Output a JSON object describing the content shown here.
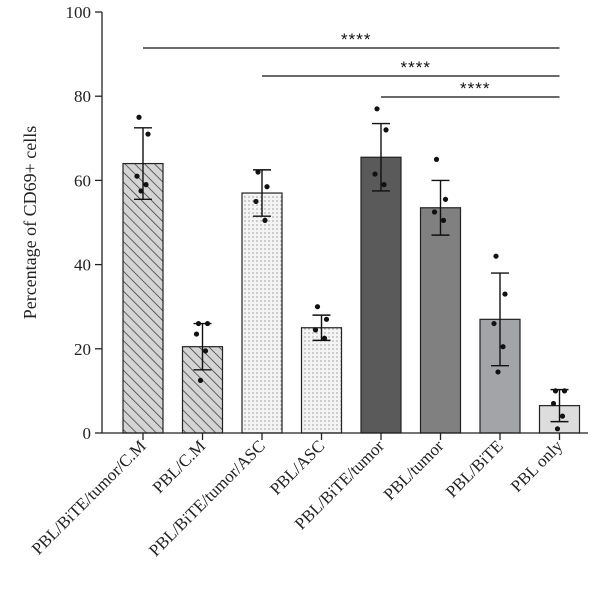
{
  "chart_data": {
    "type": "bar",
    "title": "",
    "xlabel": "",
    "ylabel": "Percentage of CD69+ cells",
    "ylim": [
      0,
      100
    ],
    "yticks": [
      0,
      20,
      40,
      60,
      80,
      100
    ],
    "grid": false,
    "categories": [
      "PBL/BiTE/tumor/C.M",
      "PBL/C.M",
      "PBL/BiTE/tumor/ASC",
      "PBL/ASC",
      "PBL/BiTE/tumor",
      "PBL/tumor",
      "PBL/BiTE",
      "PBL only"
    ],
    "values": [
      64,
      20.5,
      57,
      25,
      65.5,
      53.5,
      27,
      6.5
    ],
    "error": [
      8.5,
      5.5,
      5.5,
      3,
      8,
      6.5,
      11,
      3.8
    ],
    "points": [
      [
        75,
        71,
        61,
        59,
        57.5
      ],
      [
        26,
        26,
        23.5,
        19.5,
        12.5
      ],
      [
        62,
        58.5,
        55,
        50.5
      ],
      [
        30,
        27,
        24.5,
        22.5
      ],
      [
        77,
        72,
        61.5,
        59
      ],
      [
        65,
        55.5,
        52.5,
        50.5
      ],
      [
        42,
        33,
        26,
        20.5,
        14.5
      ],
      [
        10,
        10,
        7,
        4,
        1
      ]
    ],
    "fills": [
      {
        "pattern": "hatch",
        "color": "#c8c8c8"
      },
      {
        "pattern": "hatch",
        "color": "#c8c8c8"
      },
      {
        "pattern": "dots",
        "color": "#f2f2f2"
      },
      {
        "pattern": "dots",
        "color": "#f2f2f2"
      },
      {
        "pattern": "solid",
        "color": "#5a5a5a"
      },
      {
        "pattern": "solid",
        "color": "#808080"
      },
      {
        "pattern": "solid",
        "color": "#a3a4a8"
      },
      {
        "pattern": "solid",
        "color": "#dddddd"
      }
    ],
    "significance": [
      {
        "from": 0,
        "to": 7,
        "label": "****"
      },
      {
        "from": 2,
        "to": 7,
        "label": "****"
      },
      {
        "from": 4,
        "to": 7,
        "label": "****"
      }
    ]
  }
}
